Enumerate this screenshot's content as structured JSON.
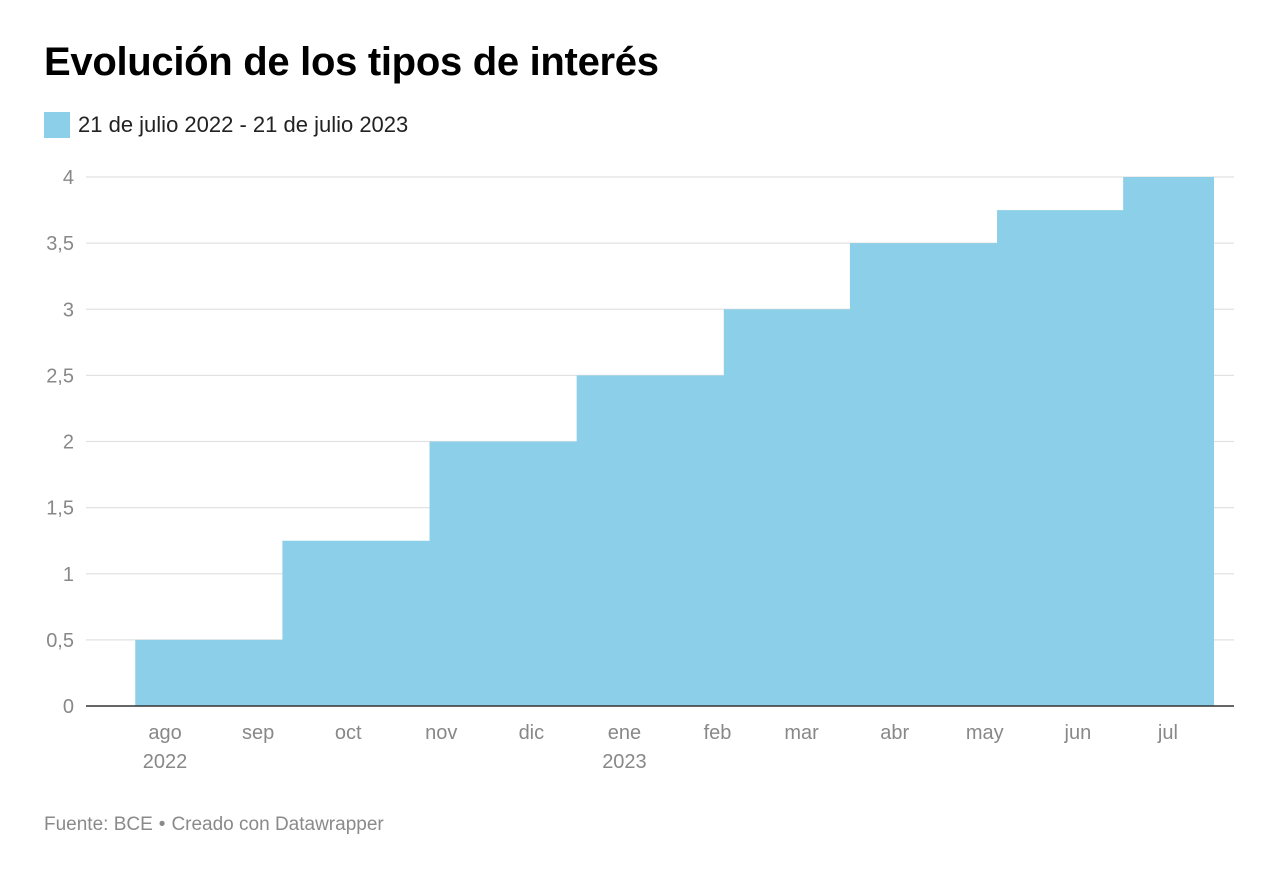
{
  "header": {
    "title": "Evolución de los tipos de interés"
  },
  "legend": {
    "label": "21 de julio 2022 - 21 de julio 2023",
    "color": "#8ccfe8"
  },
  "footer": {
    "source": "Fuente: BCE",
    "separator": "•",
    "credit": "Creado con Datawrapper"
  },
  "chart_data": {
    "type": "area",
    "title": "Evolución de los tipos de interés",
    "series": [
      {
        "name": "21 de julio 2022 - 21 de julio 2023",
        "color": "#8ccfe8",
        "step": true,
        "points": [
          {
            "x": "2022-07-21",
            "y": 0
          },
          {
            "x": "2022-07-27",
            "y": 0.5
          },
          {
            "x": "2022-09-14",
            "y": 1.25
          },
          {
            "x": "2022-11-02",
            "y": 2
          },
          {
            "x": "2022-12-21",
            "y": 2.5
          },
          {
            "x": "2023-02-08",
            "y": 3
          },
          {
            "x": "2023-03-22",
            "y": 3.5
          },
          {
            "x": "2023-05-10",
            "y": 3.75
          },
          {
            "x": "2023-06-21",
            "y": 4
          },
          {
            "x": "2023-07-21",
            "y": 4
          }
        ]
      }
    ],
    "x_range": [
      "2022-07-21",
      "2023-07-21"
    ],
    "x_ticks": [
      {
        "label": "ago",
        "sublabel": "2022",
        "date": "2022-08-01"
      },
      {
        "label": "sep",
        "sublabel": "",
        "date": "2022-09-01"
      },
      {
        "label": "oct",
        "sublabel": "",
        "date": "2022-10-01"
      },
      {
        "label": "nov",
        "sublabel": "",
        "date": "2022-11-01"
      },
      {
        "label": "dic",
        "sublabel": "",
        "date": "2022-12-01"
      },
      {
        "label": "ene",
        "sublabel": "2023",
        "date": "2023-01-01"
      },
      {
        "label": "feb",
        "sublabel": "",
        "date": "2023-02-01"
      },
      {
        "label": "mar",
        "sublabel": "",
        "date": "2023-03-01"
      },
      {
        "label": "abr",
        "sublabel": "",
        "date": "2023-04-01"
      },
      {
        "label": "may",
        "sublabel": "",
        "date": "2023-05-01"
      },
      {
        "label": "jun",
        "sublabel": "",
        "date": "2023-06-01"
      },
      {
        "label": "jul",
        "sublabel": "",
        "date": "2023-07-01"
      }
    ],
    "y_ticks": [
      {
        "value": 0,
        "label": "0"
      },
      {
        "value": 0.5,
        "label": "0,5"
      },
      {
        "value": 1,
        "label": "1"
      },
      {
        "value": 1.5,
        "label": "1,5"
      },
      {
        "value": 2,
        "label": "2"
      },
      {
        "value": 2.5,
        "label": "2,5"
      },
      {
        "value": 3,
        "label": "3"
      },
      {
        "value": 3.5,
        "label": "3,5"
      },
      {
        "value": 4,
        "label": "4"
      }
    ],
    "ylim": [
      0,
      4
    ],
    "grid": true,
    "legend_position": "top-left",
    "xlabel": "",
    "ylabel": ""
  }
}
